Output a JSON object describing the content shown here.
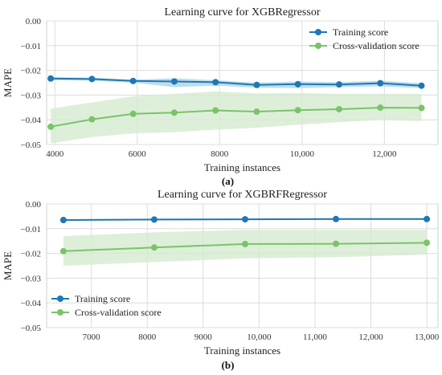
{
  "colors": {
    "training": "#1f77b4",
    "training_band": "#a8d1e7",
    "cv": "#7ac36a",
    "cv_band": "#d5ebcf",
    "grid": "#dcdcdc"
  },
  "chart_data": [
    {
      "type": "line",
      "title": "Learning curve for XGBRegressor",
      "xlabel": "Training instances",
      "ylabel": "MAPE",
      "caption": "(a)",
      "xlim": [
        3800,
        13300
      ],
      "ylim": [
        -0.05,
        0.0
      ],
      "xticks": [
        4000,
        6000,
        8000,
        10000,
        12000
      ],
      "xtick_labels": [
        "4000",
        "6000",
        "8000",
        "10,000",
        "12,000"
      ],
      "yticks": [
        0.0,
        -0.01,
        -0.02,
        -0.03,
        -0.04,
        -0.05
      ],
      "ytick_labels": [
        "0.00",
        "−0.01",
        "−0.02",
        "−0.03",
        "−0.04",
        "−0.05"
      ],
      "grid": true,
      "legend_position": "top-right",
      "x": [
        3900,
        4900,
        5900,
        6900,
        7900,
        8900,
        9900,
        10900,
        11900,
        12900
      ],
      "series": [
        {
          "name": "Training score",
          "values": [
            -0.0233,
            -0.0235,
            -0.0243,
            -0.0245,
            -0.0248,
            -0.0259,
            -0.0256,
            -0.0257,
            -0.0252,
            -0.0262
          ],
          "band_lower": [
            -0.024,
            -0.0242,
            -0.025,
            -0.0268,
            -0.0262,
            -0.027,
            -0.0272,
            -0.0268,
            -0.0265,
            -0.0272
          ],
          "band_upper": [
            -0.0228,
            -0.023,
            -0.0238,
            -0.0232,
            -0.024,
            -0.025,
            -0.0245,
            -0.0248,
            -0.0242,
            -0.0252
          ]
        },
        {
          "name": "Cross-validation score",
          "values": [
            -0.0428,
            -0.0398,
            -0.0376,
            -0.0371,
            -0.0362,
            -0.0367,
            -0.0361,
            -0.0357,
            -0.0351,
            -0.0352
          ],
          "band_lower": [
            -0.0495,
            -0.047,
            -0.0455,
            -0.045,
            -0.044,
            -0.0432,
            -0.042,
            -0.041,
            -0.04,
            -0.0405
          ],
          "band_upper": [
            -0.0355,
            -0.033,
            -0.0305,
            -0.0295,
            -0.0285,
            -0.0293,
            -0.0292,
            -0.0295,
            -0.0295,
            -0.0295
          ]
        }
      ]
    },
    {
      "type": "line",
      "title": "Learning curve for XGBRFRegressor",
      "xlabel": "Training instances",
      "ylabel": "MAPE",
      "caption": "(b)",
      "xlim": [
        6200,
        13200
      ],
      "ylim": [
        -0.05,
        0.0
      ],
      "xticks": [
        7000,
        8000,
        9000,
        10000,
        11000,
        12000,
        13000
      ],
      "xtick_labels": [
        "7000",
        "8000",
        "9000",
        "10,000",
        "11,000",
        "12,000",
        "13,000"
      ],
      "yticks": [
        0.0,
        -0.01,
        -0.02,
        -0.03,
        -0.04,
        -0.05
      ],
      "ytick_labels": [
        "0.00",
        "−0.01",
        "−0.02",
        "−0.03",
        "−0.04",
        "−0.05"
      ],
      "grid": true,
      "legend_position": "bottom-left",
      "x": [
        6500,
        8125,
        9750,
        11375,
        13000
      ],
      "series": [
        {
          "name": "Training score",
          "values": [
            -0.0065,
            -0.0063,
            -0.0062,
            -0.0061,
            -0.0061
          ],
          "band_lower": [
            -0.0068,
            -0.0066,
            -0.0065,
            -0.0064,
            -0.0064
          ],
          "band_upper": [
            -0.0062,
            -0.006,
            -0.0059,
            -0.0058,
            -0.0058
          ]
        },
        {
          "name": "Cross-validation score",
          "values": [
            -0.0191,
            -0.0176,
            -0.0162,
            -0.0161,
            -0.0157
          ],
          "band_lower": [
            -0.025,
            -0.0235,
            -0.022,
            -0.0215,
            -0.0205
          ],
          "band_upper": [
            -0.013,
            -0.0115,
            -0.0105,
            -0.0105,
            -0.0105
          ]
        }
      ]
    }
  ]
}
